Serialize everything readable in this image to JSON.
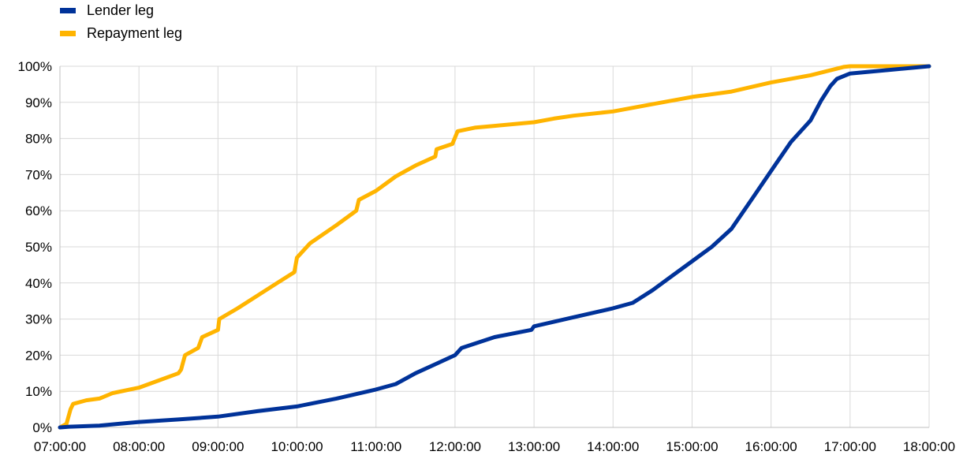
{
  "chart_data": {
    "type": "line",
    "title": "",
    "xlabel": "",
    "ylabel": "",
    "x_unit": "time of day",
    "xlim": [
      "07:00:00",
      "18:00:00"
    ],
    "ylim": [
      0,
      100
    ],
    "grid": true,
    "legend_position": "top-left",
    "x_ticks": [
      "07:00:00",
      "08:00:00",
      "09:00:00",
      "10:00:00",
      "11:00:00",
      "12:00:00",
      "13:00:00",
      "14:00:00",
      "15:00:00",
      "16:00:00",
      "17:00:00",
      "18:00:00"
    ],
    "y_ticks": [
      "0%",
      "10%",
      "20%",
      "30%",
      "40%",
      "50%",
      "60%",
      "70%",
      "80%",
      "90%",
      "100%"
    ],
    "series": [
      {
        "name": "Lender leg",
        "color": "#003299",
        "points": [
          [
            "07:00",
            0
          ],
          [
            "07:07",
            0.2
          ],
          [
            "07:30",
            0.5
          ],
          [
            "07:45",
            1
          ],
          [
            "08:00",
            1.5
          ],
          [
            "08:30",
            2.2
          ],
          [
            "09:00",
            3
          ],
          [
            "09:30",
            4.5
          ],
          [
            "10:00",
            5.8
          ],
          [
            "10:30",
            8
          ],
          [
            "11:00",
            10.5
          ],
          [
            "11:15",
            12
          ],
          [
            "11:30",
            15
          ],
          [
            "11:45",
            17.5
          ],
          [
            "12:00",
            20
          ],
          [
            "12:05",
            22
          ],
          [
            "12:30",
            25
          ],
          [
            "12:58",
            27
          ],
          [
            "13:00",
            28
          ],
          [
            "13:30",
            30.5
          ],
          [
            "14:00",
            33
          ],
          [
            "14:15",
            34.5
          ],
          [
            "14:30",
            38
          ],
          [
            "14:45",
            42
          ],
          [
            "15:00",
            46
          ],
          [
            "15:15",
            50
          ],
          [
            "15:30",
            55
          ],
          [
            "15:45",
            63
          ],
          [
            "16:00",
            71
          ],
          [
            "16:15",
            79
          ],
          [
            "16:30",
            85
          ],
          [
            "16:38",
            90.5
          ],
          [
            "16:45",
            94.5
          ],
          [
            "16:50",
            96.5
          ],
          [
            "17:00",
            98
          ],
          [
            "17:30",
            99
          ],
          [
            "18:00",
            100
          ]
        ]
      },
      {
        "name": "Repayment leg",
        "color": "#FFB400",
        "points": [
          [
            "07:00",
            0
          ],
          [
            "07:05",
            1
          ],
          [
            "07:08",
            5
          ],
          [
            "07:10",
            6.5
          ],
          [
            "07:20",
            7.5
          ],
          [
            "07:30",
            8
          ],
          [
            "07:40",
            9.5
          ],
          [
            "08:00",
            11
          ],
          [
            "08:15",
            13
          ],
          [
            "08:30",
            15
          ],
          [
            "08:32",
            16
          ],
          [
            "08:35",
            20
          ],
          [
            "08:45",
            22
          ],
          [
            "08:48",
            25
          ],
          [
            "09:00",
            27
          ],
          [
            "09:01",
            30
          ],
          [
            "09:15",
            33
          ],
          [
            "09:30",
            36.5
          ],
          [
            "09:45",
            40
          ],
          [
            "09:58",
            43
          ],
          [
            "10:00",
            47
          ],
          [
            "10:10",
            51
          ],
          [
            "10:30",
            56
          ],
          [
            "10:45",
            60
          ],
          [
            "10:47",
            63
          ],
          [
            "11:00",
            65.5
          ],
          [
            "11:15",
            69.5
          ],
          [
            "11:30",
            72.5
          ],
          [
            "11:45",
            75
          ],
          [
            "11:46",
            77
          ],
          [
            "11:58",
            78.5
          ],
          [
            "12:02",
            82
          ],
          [
            "12:15",
            83
          ],
          [
            "12:30",
            83.5
          ],
          [
            "13:00",
            84.5
          ],
          [
            "13:15",
            85.5
          ],
          [
            "13:30",
            86.3
          ],
          [
            "14:00",
            87.5
          ],
          [
            "14:30",
            89.5
          ],
          [
            "15:00",
            91.5
          ],
          [
            "15:30",
            93
          ],
          [
            "16:00",
            95.5
          ],
          [
            "16:30",
            97.5
          ],
          [
            "16:55",
            99.8
          ],
          [
            "17:00",
            100
          ],
          [
            "18:00",
            100
          ]
        ]
      }
    ]
  }
}
